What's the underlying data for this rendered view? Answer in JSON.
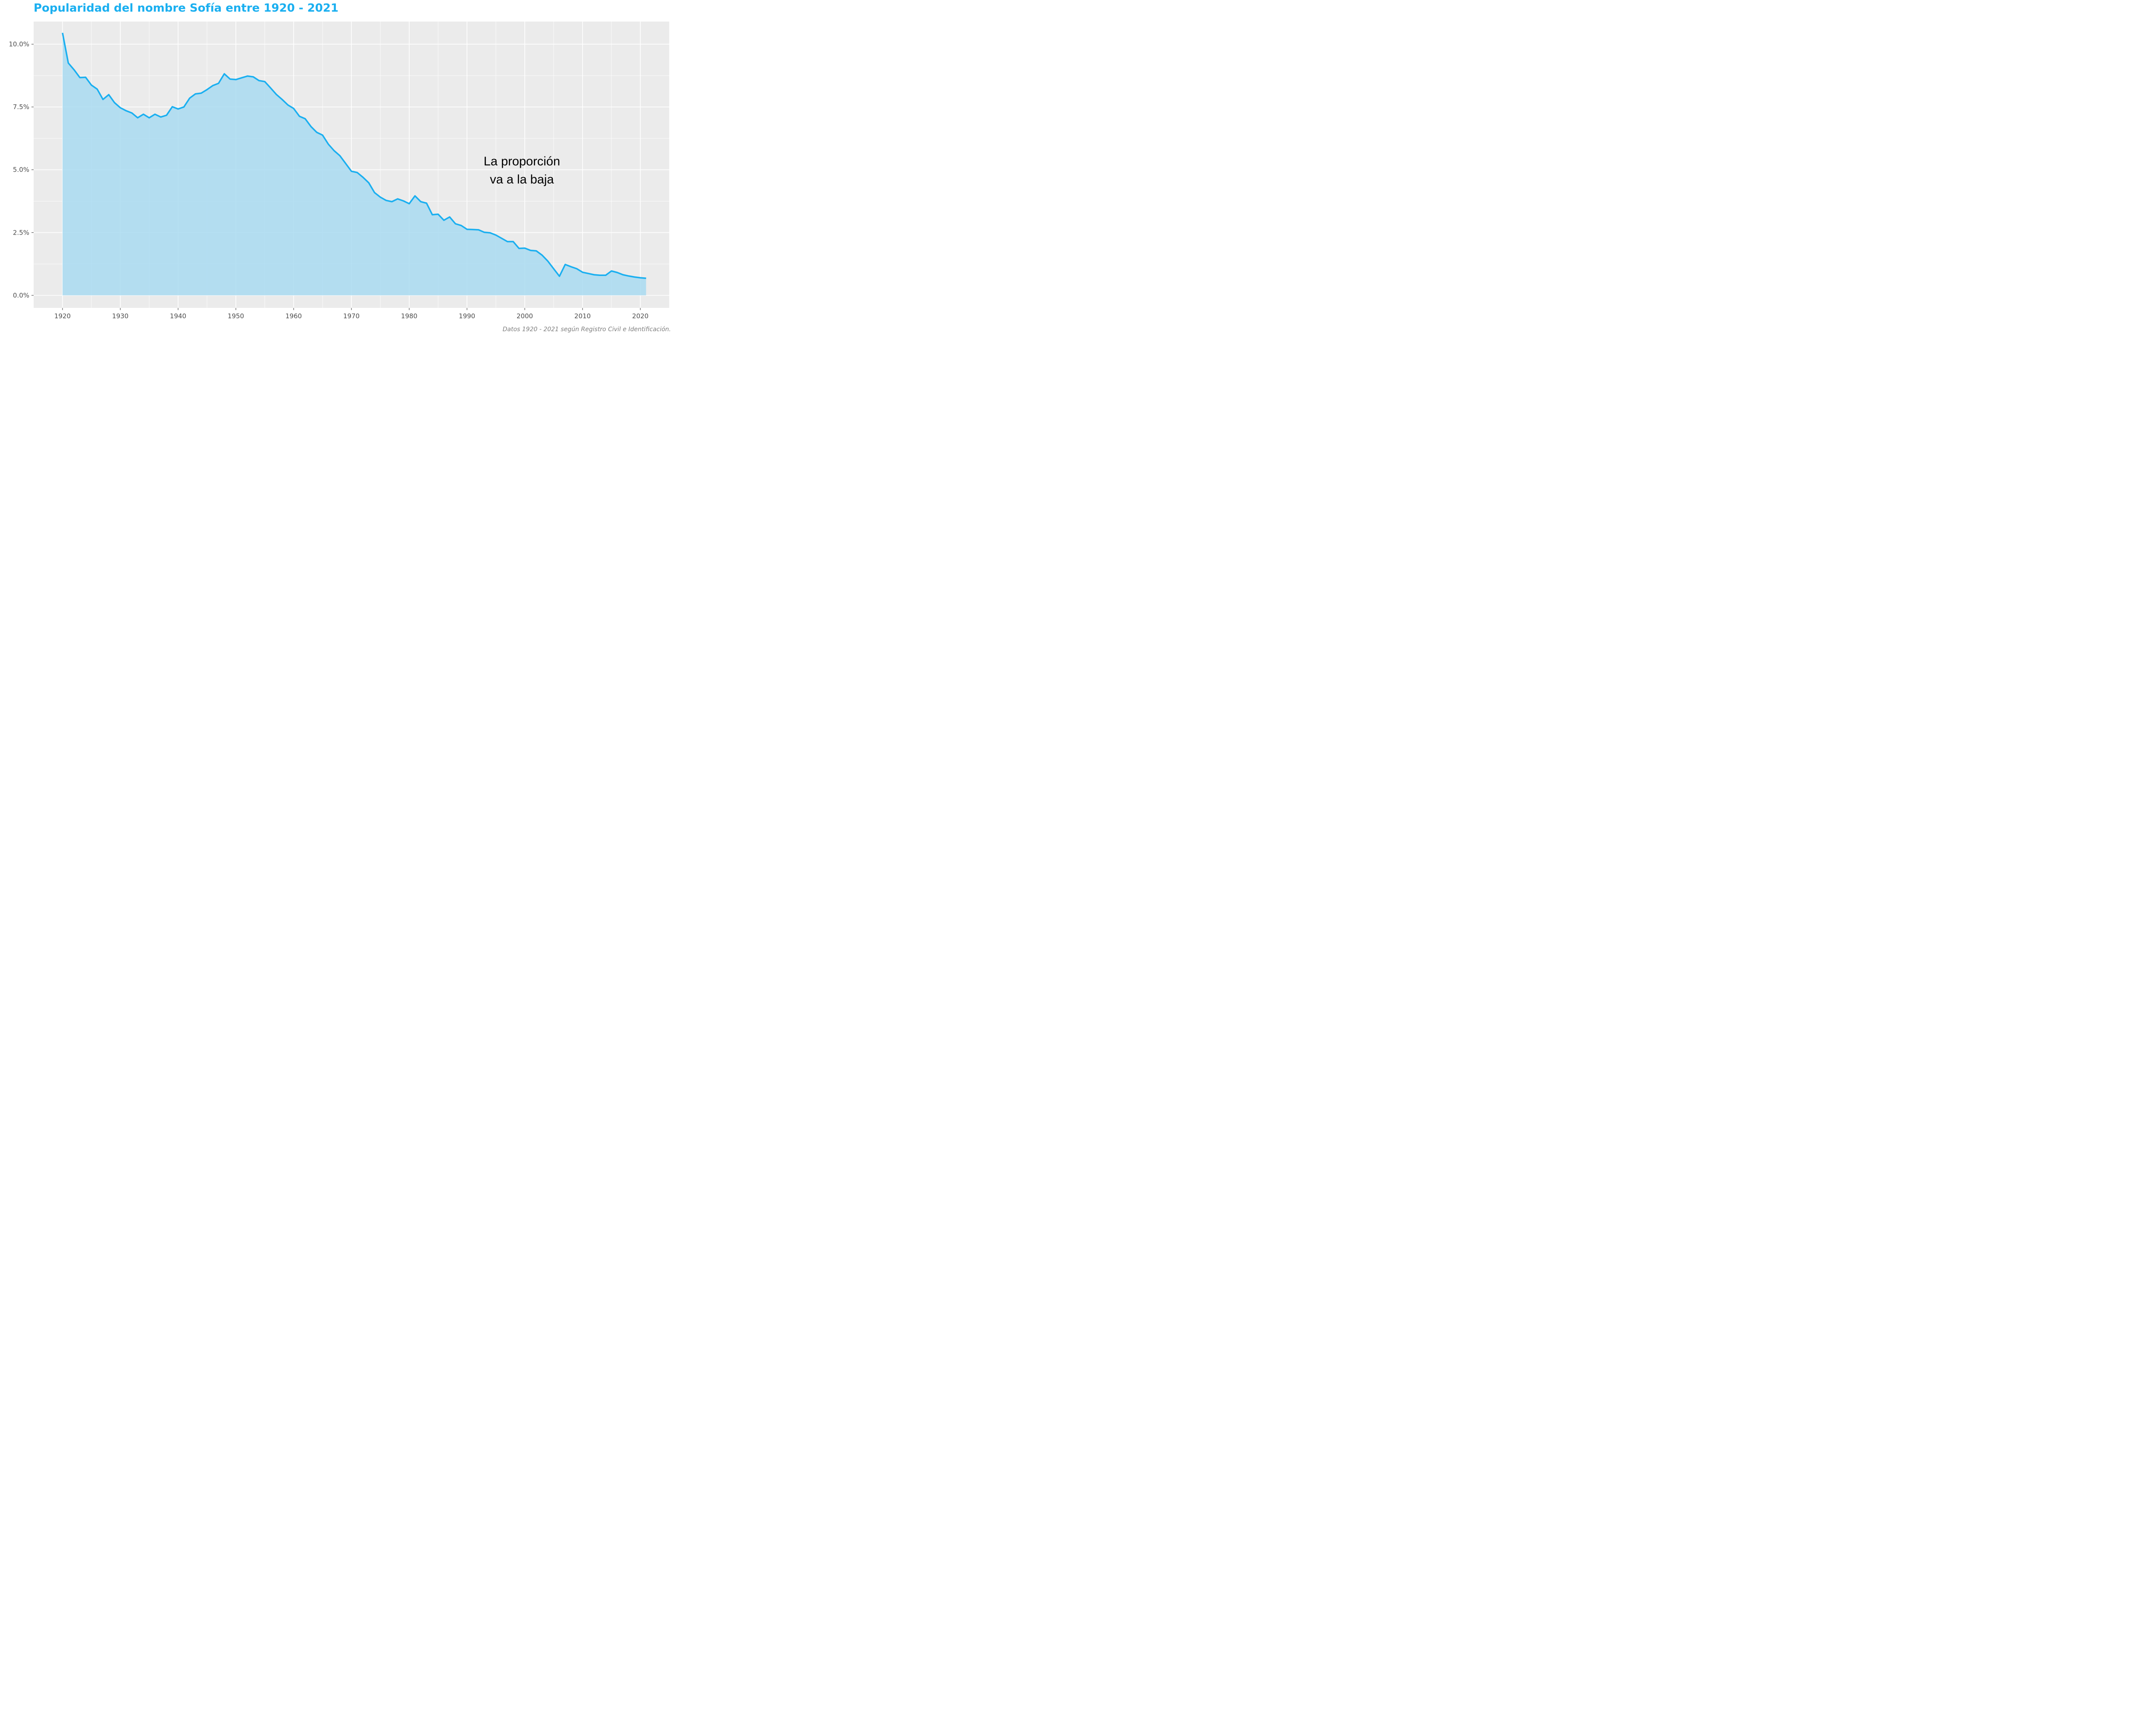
{
  "title": "Popularidad del nombre Sofía entre 1920 - 2021",
  "caption": "Datos 1920 - 2021 según Registro Civil e Identificación.",
  "colors": {
    "title": "#1AAFF0",
    "line": "#1AAFF0",
    "area": "#A9DAF1",
    "panel": "#EBEBEB",
    "grid": "#FFFFFF"
  },
  "chart_data": {
    "type": "area",
    "title": "Popularidad del nombre Sofía entre 1920 - 2021",
    "xlabel": "",
    "ylabel": "",
    "xlim": [
      1915,
      2025
    ],
    "ylim": [
      -0.5,
      10.9
    ],
    "grid": true,
    "x_ticks": [
      1920,
      1930,
      1940,
      1950,
      1960,
      1970,
      1980,
      1990,
      2000,
      2010,
      2020
    ],
    "y_ticks": [
      0,
      2.5,
      5,
      7.5,
      10
    ],
    "y_tick_labels": [
      "0.0%",
      "2.5%",
      "5.0%",
      "7.5%",
      "10.0%"
    ],
    "annotation": {
      "lines": [
        "La proporción",
        "va a la baja"
      ],
      "x": 1999.5,
      "y": 5.0
    },
    "series": [
      {
        "x": [
          1920,
          1921,
          1922,
          1923,
          1924,
          1925,
          1926,
          1927,
          1928,
          1929,
          1930,
          1931,
          1932,
          1933,
          1934,
          1935,
          1936,
          1937,
          1938,
          1939,
          1940,
          1941,
          1942,
          1943,
          1944,
          1945,
          1946,
          1947,
          1948,
          1949,
          1950,
          1951,
          1952,
          1953,
          1954,
          1955,
          1956,
          1957,
          1958,
          1959,
          1960,
          1961,
          1962,
          1963,
          1964,
          1965,
          1966,
          1967,
          1968,
          1969,
          1970,
          1971,
          1972,
          1973,
          1974,
          1975,
          1976,
          1977,
          1978,
          1979,
          1980,
          1981,
          1982,
          1983,
          1984,
          1985,
          1986,
          1987,
          1988,
          1989,
          1990,
          1991,
          1992,
          1993,
          1994,
          1995,
          1996,
          1997,
          1998,
          1999,
          2000,
          2001,
          2002,
          2003,
          2004,
          2005,
          2006,
          2007,
          2008,
          2009,
          2010,
          2011,
          2012,
          2013,
          2014,
          2015,
          2016,
          2017,
          2018,
          2019,
          2020,
          2021
        ],
        "values": [
          10.45,
          9.25,
          8.98,
          8.67,
          8.68,
          8.37,
          8.21,
          7.8,
          7.99,
          7.67,
          7.47,
          7.35,
          7.26,
          7.07,
          7.21,
          7.07,
          7.21,
          7.1,
          7.17,
          7.51,
          7.42,
          7.5,
          7.85,
          8.02,
          8.05,
          8.19,
          8.35,
          8.44,
          8.82,
          8.61,
          8.59,
          8.66,
          8.73,
          8.7,
          8.55,
          8.51,
          8.26,
          8.0,
          7.8,
          7.58,
          7.44,
          7.13,
          7.03,
          6.72,
          6.49,
          6.38,
          6.02,
          5.76,
          5.56,
          5.25,
          4.94,
          4.89,
          4.7,
          4.48,
          4.09,
          3.91,
          3.78,
          3.73,
          3.84,
          3.76,
          3.65,
          3.96,
          3.73,
          3.67,
          3.21,
          3.23,
          2.99,
          3.12,
          2.85,
          2.78,
          2.63,
          2.62,
          2.61,
          2.51,
          2.49,
          2.4,
          2.27,
          2.14,
          2.14,
          1.87,
          1.88,
          1.79,
          1.77,
          1.6,
          1.36,
          1.06,
          0.76,
          1.23,
          1.14,
          1.06,
          0.92,
          0.87,
          0.82,
          0.8,
          0.8,
          0.97,
          0.91,
          0.82,
          0.77,
          0.73,
          0.7,
          0.68
        ]
      }
    ]
  }
}
